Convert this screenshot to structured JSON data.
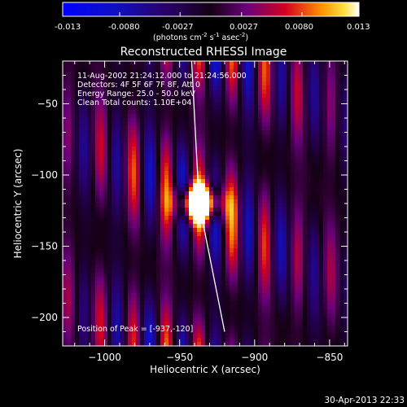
{
  "colorbar": {
    "ticks": [
      "-0.013",
      "-0.0080",
      "-0.0027",
      "0.0027",
      "0.0080",
      "0.013"
    ],
    "min": -0.013,
    "max": 0.013,
    "units_text": "(photons cm",
    "units_exp1": "-2",
    "units_mid": " s",
    "units_exp2": "-1",
    "units_mid2": " asec",
    "units_exp3": "-2",
    "units_close": ")"
  },
  "chart_data": {
    "type": "heatmap",
    "title": "Reconstructed RHESSI Image",
    "xlabel": "Heliocentric X (arcsec)",
    "ylabel": "Heliocentric Y (arcsec)",
    "xlim": [
      -1028,
      -838
    ],
    "ylim": [
      -220,
      -20
    ],
    "xticks": [
      -1000,
      -950,
      -900,
      -850
    ],
    "yticks": [
      -50,
      -100,
      -150,
      -200
    ],
    "xtick_labels": [
      "−1000",
      "−950",
      "−900",
      "−850"
    ],
    "ytick_labels": [
      "−50",
      "−100",
      "−150",
      "−200"
    ],
    "colormap": "hot/blue",
    "annotations": [
      "11-Aug-2002 21:24:12.000 to 21:24:56.000",
      "Detectors: 4F 5F 6F 7F 8F, Att 0",
      "Energy Range: 25.0 - 50.0 keV",
      "Clean    Total counts: 1.10E+04"
    ],
    "peak_label": "Position of Peak = [-937,-120]",
    "peak": [
      -937,
      -120
    ],
    "limb_line": [
      [
        -942,
        -20
      ],
      [
        -937,
        -120
      ],
      [
        -920,
        -210
      ]
    ]
  },
  "footer": {
    "timestamp": "30-Apr-2013 22:33"
  }
}
